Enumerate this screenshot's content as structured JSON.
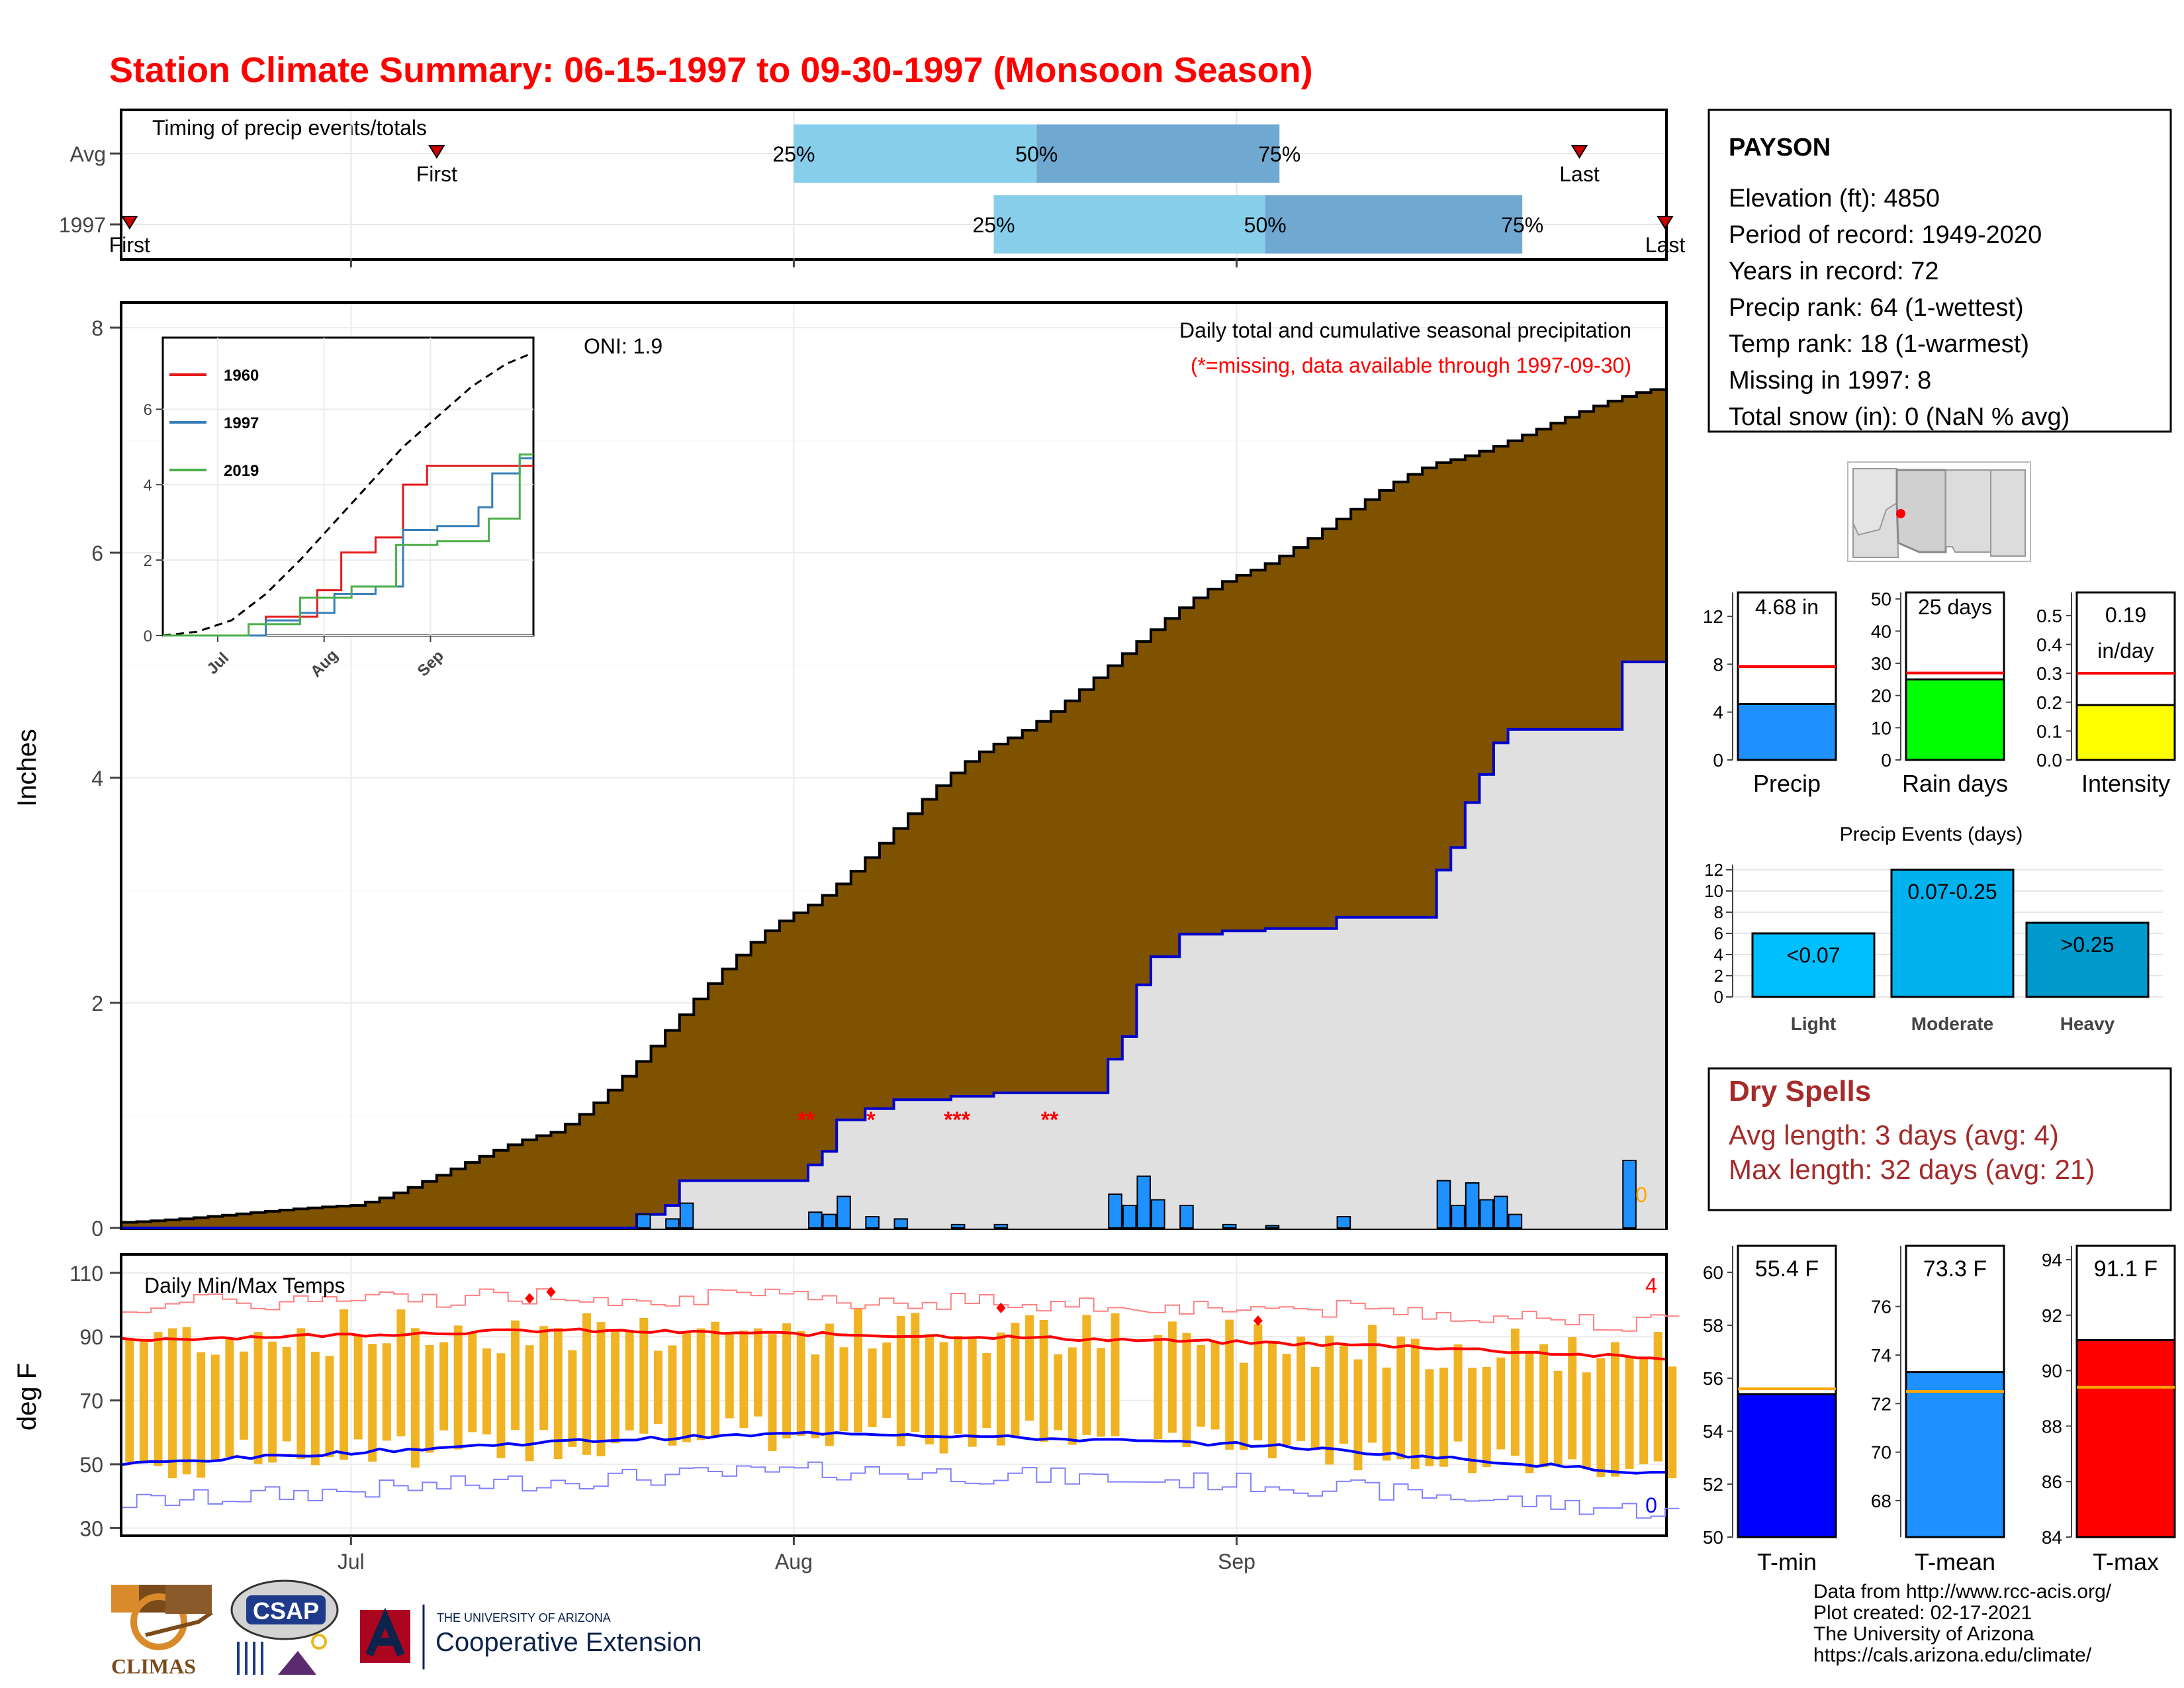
{
  "page_title": "Station Climate Summary: 06-15-1997 to 09-30-1997 (Monsoon Season)",
  "timing": {
    "title": "Timing of precip events/totals",
    "rows": [
      {
        "label": "Avg",
        "first_day": 22,
        "q25_day": 47,
        "q50_day": 64,
        "q75_day": 81,
        "last_day": 102,
        "first_label": "First",
        "last_label": "Last"
      },
      {
        "label": "1997",
        "first_day": 0.5,
        "q25_day": 61,
        "q50_day": 80,
        "q75_day": 98,
        "last_day": 108,
        "first_label": "First",
        "last_label": "Last"
      }
    ],
    "quartile_labels": [
      "25%",
      "50%",
      "75%"
    ]
  },
  "month_labels": [
    "Jul",
    "Aug",
    "Sep"
  ],
  "main_chart": {
    "ylabel": "Inches",
    "ytick_labels": [
      "0",
      "2",
      "4",
      "6",
      "8"
    ],
    "oni_text": "ONI: 1.9",
    "title": "Daily total and cumulative seasonal precipitation",
    "subtitle": "(*=missing, data available through 1997-09-30)",
    "zero_label": "0",
    "missing_markers": [
      "**",
      "*",
      "***",
      "**"
    ]
  },
  "inset": {
    "ytick_labels": [
      "0",
      "2",
      "4",
      "6"
    ],
    "xtick_labels": [
      "Jul",
      "Aug",
      "Sep"
    ],
    "legend": [
      {
        "name": "1960",
        "color": "#e41a1c"
      },
      {
        "name": "1997",
        "color": "#377eb8"
      },
      {
        "name": "2019",
        "color": "#4daf4a"
      }
    ]
  },
  "temp_chart": {
    "title": "Daily Min/Max Temps",
    "ylabel": "deg F",
    "ytick_labels": [
      "30",
      "50",
      "70",
      "90",
      "110"
    ],
    "count_high": "4",
    "count_low": "0"
  },
  "station": {
    "name": "PAYSON",
    "lines": [
      "Elevation (ft): 4850",
      "Period of record: 1949-2020",
      "Years in record: 72",
      "Precip rank: 64 (1-wettest)",
      "Temp rank: 18 (1-warmest)",
      "Missing in 1997: 8",
      "Total snow (in): 0 (NaN % avg)"
    ]
  },
  "mini_bars": [
    {
      "label": "Precip",
      "value_text": "4.68 in",
      "value": 4.68,
      "avg": 7.8,
      "max": 14,
      "ticks": [
        "0",
        "4",
        "8",
        "12"
      ],
      "color": "#1e90ff"
    },
    {
      "label": "Rain days",
      "value_text": "25 days",
      "value": 25,
      "avg": 27,
      "max": 52,
      "ticks": [
        "0",
        "10",
        "20",
        "30",
        "40",
        "50"
      ],
      "color": "#00ff00"
    },
    {
      "label": "Intensity",
      "value_text": "0.19 in/day",
      "value": 0.19,
      "avg": 0.3,
      "max": 0.58,
      "ticks": [
        "0.0",
        "0.1",
        "0.2",
        "0.3",
        "0.4",
        "0.5"
      ],
      "color": "#ffff00"
    }
  ],
  "precip_events": {
    "title": "Precip Events (days)",
    "ticks": [
      "0",
      "2",
      "4",
      "6",
      "8",
      "10",
      "12"
    ],
    "bars": [
      {
        "category": "Light",
        "label": "<0.07",
        "value": 6,
        "color": "#00bfff"
      },
      {
        "category": "Moderate",
        "label": "0.07-0.25",
        "value": 12,
        "color": "#00b2ee"
      },
      {
        "category": "Heavy",
        "label": ">0.25",
        "value": 7,
        "color": "#009acd"
      }
    ]
  },
  "dry_spells": {
    "title": "Dry Spells",
    "avg_line": "Avg length: 3 days (avg: 4)",
    "max_line": "Max length: 32 days (avg: 21)"
  },
  "temp_bars": [
    {
      "label": "T-min",
      "value_text": "55.4 F",
      "value": 55.4,
      "avg": 55.6,
      "ymin": 50,
      "ymax": 61,
      "ticks": [
        "50",
        "52",
        "54",
        "56",
        "58",
        "60"
      ],
      "color": "#0000ff"
    },
    {
      "label": "T-mean",
      "value_text": "73.3 F",
      "value": 73.3,
      "avg": 72.5,
      "ymin": 66.5,
      "ymax": 78.5,
      "ticks": [
        "68",
        "70",
        "72",
        "74",
        "76"
      ],
      "color": "#1e90ff"
    },
    {
      "label": "T-max",
      "value_text": "91.1 F",
      "value": 91.1,
      "avg": 89.4,
      "ymin": 84,
      "ymax": 94.5,
      "ticks": [
        "84",
        "86",
        "88",
        "90",
        "92",
        "94"
      ],
      "color": "#ff0000"
    }
  ],
  "footer": {
    "lines": [
      "Data from http://www.rcc-acis.org/",
      "Plot created: 02-17-2021",
      "The University of Arizona",
      "https://cals.arizona.edu/climate/"
    ],
    "logos": {
      "climas": "CLIMAS",
      "csap": "CSAP",
      "ua_small": "THE UNIVERSITY OF ARIZONA",
      "ua_large": "Cooperative Extension"
    }
  },
  "chart_data": [
    {
      "type": "bar",
      "title": "Daily total and cumulative seasonal precipitation",
      "xlabel": "",
      "ylabel": "Inches",
      "ylim": [
        0,
        8.1
      ],
      "x_start": "1997-06-15",
      "x_end": "1997-09-30",
      "daily_precip_events": [
        {
          "date": "1997-07-21",
          "value": 0.12
        },
        {
          "date": "1997-07-23",
          "value": 0.08
        },
        {
          "date": "1997-07-24",
          "value": 0.22
        },
        {
          "date": "1997-08-02",
          "value": 0.14
        },
        {
          "date": "1997-08-03",
          "value": 0.12
        },
        {
          "date": "1997-08-04",
          "value": 0.28
        },
        {
          "date": "1997-08-06",
          "value": 0.1
        },
        {
          "date": "1997-08-08",
          "value": 0.08
        },
        {
          "date": "1997-08-12",
          "value": 0.03
        },
        {
          "date": "1997-08-15",
          "value": 0.03
        },
        {
          "date": "1997-08-23",
          "value": 0.3
        },
        {
          "date": "1997-08-24",
          "value": 0.2
        },
        {
          "date": "1997-08-25",
          "value": 0.46
        },
        {
          "date": "1997-08-26",
          "value": 0.25
        },
        {
          "date": "1997-08-28",
          "value": 0.2
        },
        {
          "date": "1997-08-31",
          "value": 0.03
        },
        {
          "date": "1997-09-03",
          "value": 0.02
        },
        {
          "date": "1997-09-08",
          "value": 0.1
        },
        {
          "date": "1997-09-15",
          "value": 0.42
        },
        {
          "date": "1997-09-16",
          "value": 0.2
        },
        {
          "date": "1997-09-17",
          "value": 0.4
        },
        {
          "date": "1997-09-18",
          "value": 0.25
        },
        {
          "date": "1997-09-19",
          "value": 0.28
        },
        {
          "date": "1997-09-20",
          "value": 0.12
        },
        {
          "date": "1997-09-28",
          "value": 0.6
        }
      ],
      "avg_cumulative_reference": [
        {
          "date": "1997-06-15",
          "value": 0.05
        },
        {
          "date": "1997-07-01",
          "value": 0.2
        },
        {
          "date": "1997-07-15",
          "value": 0.85
        },
        {
          "date": "1997-08-01",
          "value": 2.8
        },
        {
          "date": "1997-08-15",
          "value": 4.3
        },
        {
          "date": "1997-09-01",
          "value": 5.8
        },
        {
          "date": "1997-09-15",
          "value": 6.8
        },
        {
          "date": "1997-09-30",
          "value": 7.45
        }
      ],
      "missing_dates": [
        "1997-07-31",
        "1997-08-01",
        "1997-08-05",
        "1997-08-10",
        "1997-08-11",
        "1997-08-12",
        "1997-08-17",
        "1997-08-18"
      ]
    },
    {
      "type": "line",
      "title": "",
      "series": [
        {
          "name": "1960",
          "points": [
            [
              0,
              0
            ],
            [
              30,
              0.5
            ],
            [
              45,
              1.2
            ],
            [
              52,
              2.2
            ],
            [
              62,
              2.6
            ],
            [
              70,
              4.0
            ],
            [
              77,
              4.5
            ],
            [
              95,
              4.5
            ],
            [
              108,
              4.5
            ]
          ]
        },
        {
          "name": "1997",
          "points": [
            [
              0,
              0
            ],
            [
              30,
              0.4
            ],
            [
              40,
              0.6
            ],
            [
              50,
              1.1
            ],
            [
              62,
              1.3
            ],
            [
              70,
              2.8
            ],
            [
              80,
              2.9
            ],
            [
              92,
              3.4
            ],
            [
              96,
              4.3
            ],
            [
              104,
              4.7
            ],
            [
              108,
              4.7
            ]
          ]
        },
        {
          "name": "2019",
          "points": [
            [
              0,
              0
            ],
            [
              25,
              0.3
            ],
            [
              40,
              1.0
            ],
            [
              55,
              1.3
            ],
            [
              68,
              2.4
            ],
            [
              80,
              2.5
            ],
            [
              95,
              3.1
            ],
            [
              104,
              4.8
            ],
            [
              108,
              4.8
            ]
          ]
        }
      ],
      "avg_series": [
        [
          0,
          0
        ],
        [
          10,
          0.1
        ],
        [
          20,
          0.4
        ],
        [
          30,
          1.1
        ],
        [
          40,
          2.0
        ],
        [
          50,
          3.0
        ],
        [
          60,
          4.0
        ],
        [
          70,
          5.0
        ],
        [
          80,
          5.8
        ],
        [
          90,
          6.6
        ],
        [
          100,
          7.2
        ],
        [
          108,
          7.5
        ]
      ]
    },
    {
      "type": "bar",
      "title": "Daily Min/Max Temps",
      "ylabel": "deg F",
      "ylim": [
        30,
        110
      ],
      "avg_max": [
        [
          0,
          89
        ],
        [
          30,
          92
        ],
        [
          60,
          90
        ],
        [
          90,
          87
        ],
        [
          108,
          83
        ]
      ],
      "avg_min": [
        [
          0,
          50
        ],
        [
          30,
          57
        ],
        [
          50,
          60
        ],
        [
          80,
          56
        ],
        [
          108,
          47
        ]
      ],
      "record_high_days_count": 4,
      "record_low_days_count": 0
    }
  ]
}
